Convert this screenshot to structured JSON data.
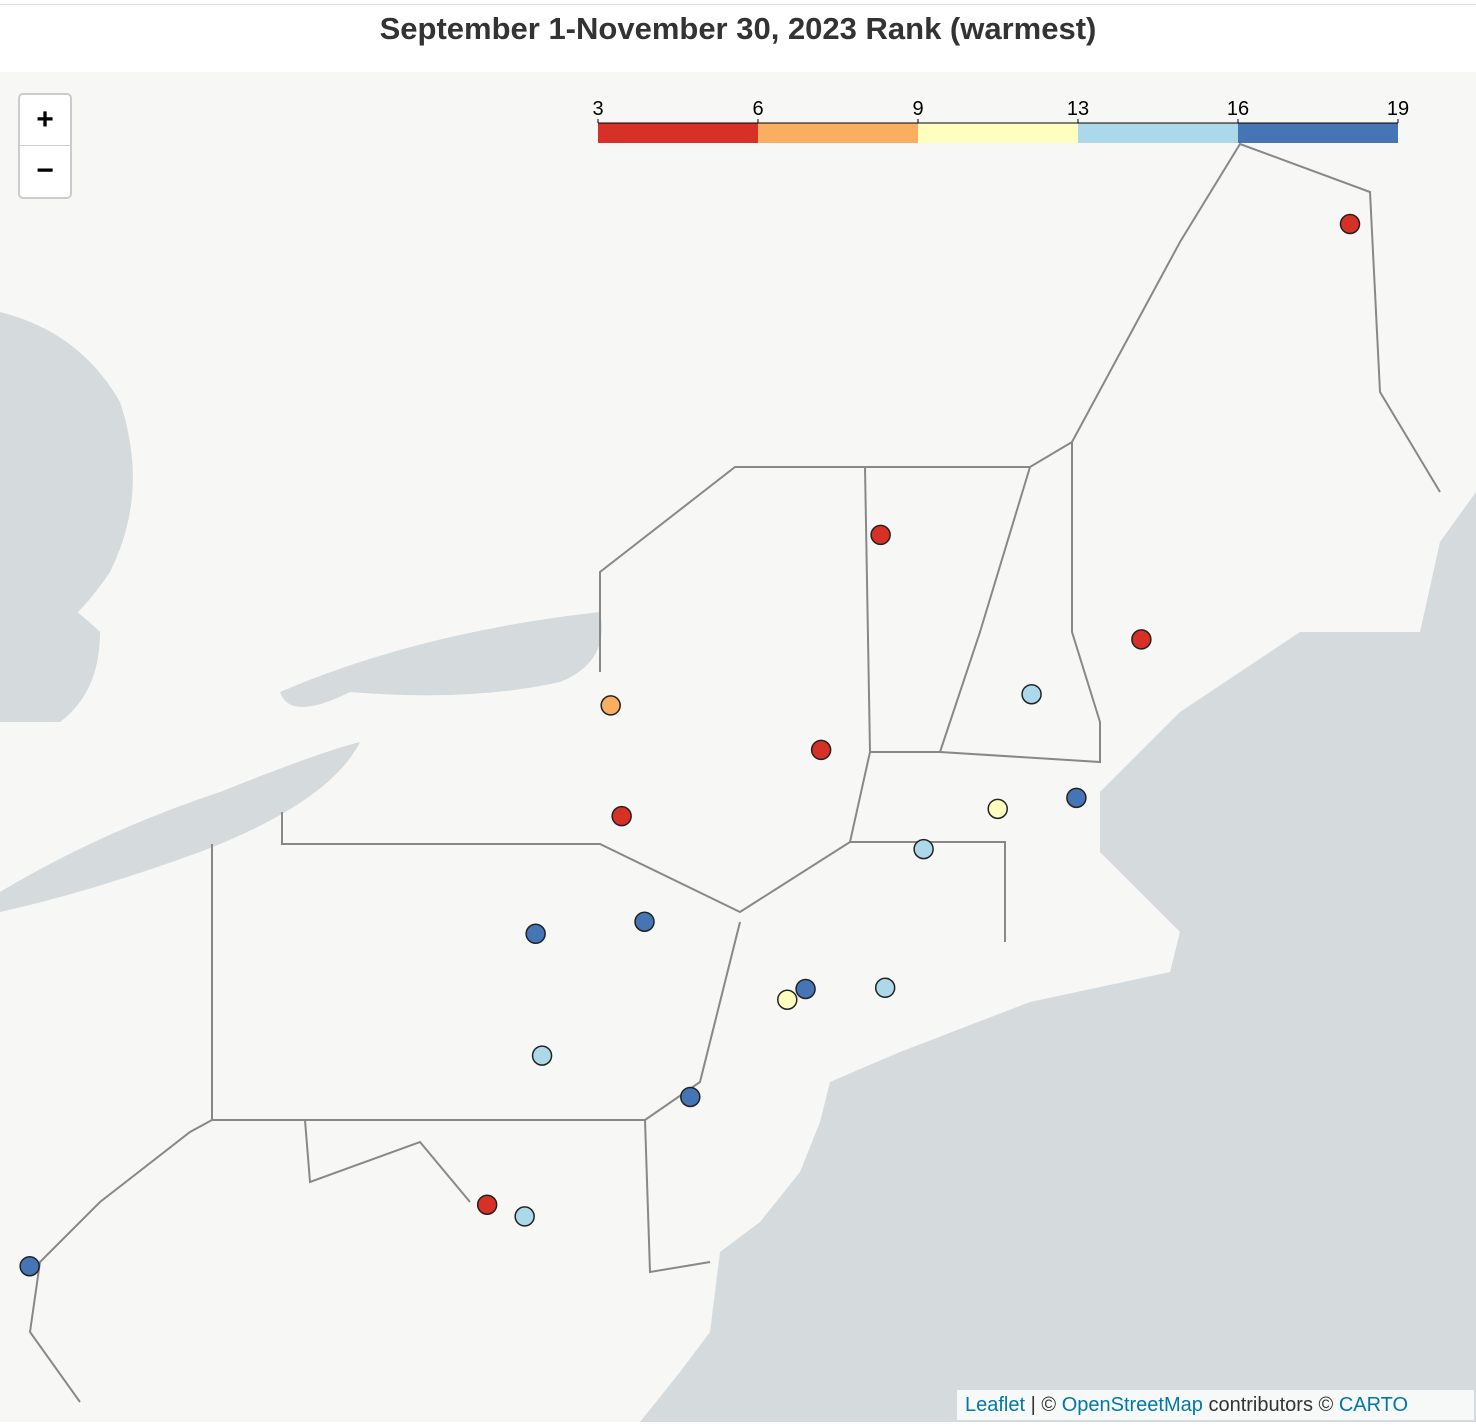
{
  "header": {
    "title": "September 1-November 30, 2023 Rank (warmest)"
  },
  "zoom": {
    "in": "+",
    "out": "−"
  },
  "legend": {
    "ticks": [
      3,
      6,
      9,
      13,
      16,
      19
    ],
    "colors": [
      "#d73027",
      "#f9ae61",
      "#feffbf",
      "#abd9e9",
      "#4575b4"
    ]
  },
  "stations": [
    {
      "lat": 46.87,
      "lon": -68.02,
      "bin": 0
    },
    {
      "lat": 44.47,
      "lon": -73.15,
      "bin": 0
    },
    {
      "lat": 43.64,
      "lon": -70.3,
      "bin": 0
    },
    {
      "lat": 43.2,
      "lon": -71.5,
      "bin": 3
    },
    {
      "lat": 43.11,
      "lon": -76.1,
      "bin": 1
    },
    {
      "lat": 42.75,
      "lon": -73.8,
      "bin": 0
    },
    {
      "lat": 42.36,
      "lon": -71.01,
      "bin": 4
    },
    {
      "lat": 42.27,
      "lon": -71.87,
      "bin": 2
    },
    {
      "lat": 42.21,
      "lon": -75.98,
      "bin": 0
    },
    {
      "lat": 41.94,
      "lon": -72.68,
      "bin": 3
    },
    {
      "lat": 41.24,
      "lon": -76.92,
      "bin": 4
    },
    {
      "lat": 41.34,
      "lon": -75.73,
      "bin": 4
    },
    {
      "lat": 40.78,
      "lon": -73.97,
      "bin": 4
    },
    {
      "lat": 40.69,
      "lon": -74.17,
      "bin": 2
    },
    {
      "lat": 40.79,
      "lon": -73.1,
      "bin": 3
    },
    {
      "lat": 40.22,
      "lon": -76.85,
      "bin": 3
    },
    {
      "lat": 39.87,
      "lon": -75.23,
      "bin": 4
    },
    {
      "lat": 38.95,
      "lon": -77.45,
      "bin": 0
    },
    {
      "lat": 38.85,
      "lon": -77.04,
      "bin": 3
    },
    {
      "lat": 38.42,
      "lon": -82.45,
      "bin": 4
    }
  ],
  "attribution": {
    "leaflet": "Leaflet",
    "sep": "| ©",
    "osm": "OpenStreetMap",
    "contributors": "contributors ©",
    "carto": "CARTO"
  }
}
